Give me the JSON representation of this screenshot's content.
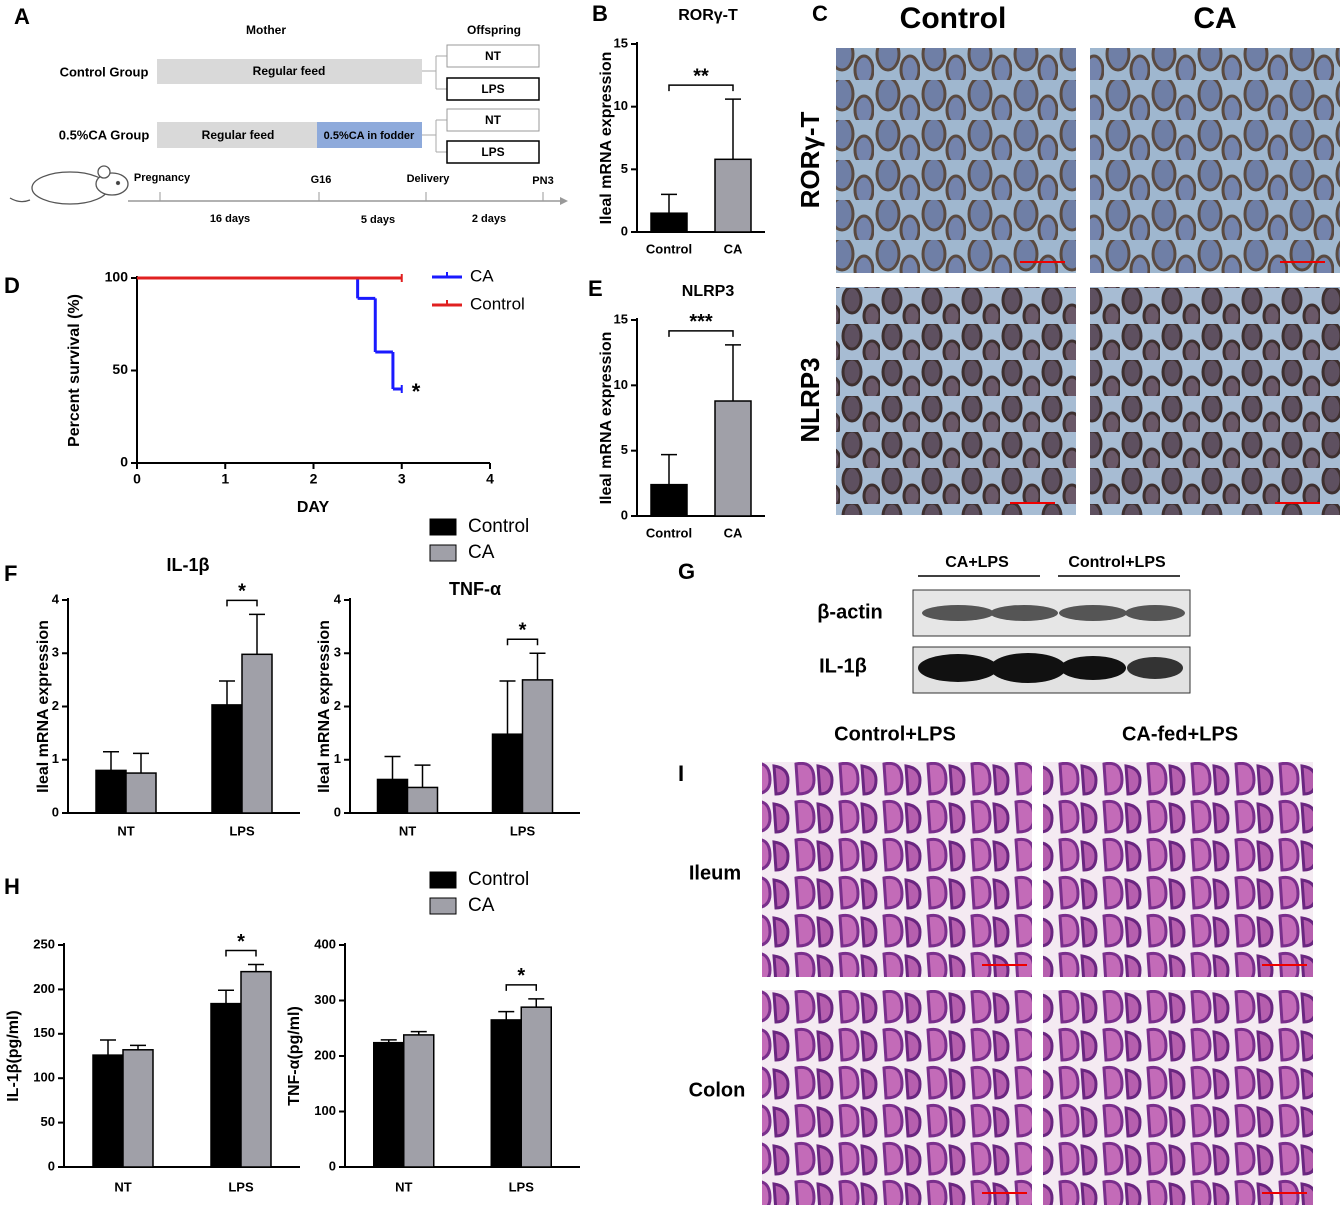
{
  "panel_letters": [
    "A",
    "B",
    "C",
    "D",
    "E",
    "F",
    "G",
    "H",
    "I"
  ],
  "panel_a": {
    "mother": "Mother",
    "offspring": "Offspring",
    "groups": [
      {
        "label": "Control Group",
        "feed": "Regular feed",
        "offspring": [
          "NT",
          "LPS"
        ]
      },
      {
        "label": "0.5%CA Group",
        "feed": "Regular feed",
        "ca_feed": "0.5%CA in fodder",
        "offspring": [
          "NT",
          "LPS"
        ]
      }
    ],
    "timeline": [
      "Pregnancy",
      "G16",
      "Delivery",
      "PN3"
    ],
    "durations": [
      "16 days",
      "5 days",
      "2 days"
    ]
  },
  "panel_c": {
    "columns": [
      "Control",
      "CA"
    ],
    "rows": [
      "RORγ-T",
      "NLRP3"
    ]
  },
  "panel_g": {
    "groups": [
      "CA+LPS",
      "Control+LPS"
    ],
    "rows": [
      "β-actin",
      "IL-1β"
    ]
  },
  "panel_i": {
    "columns": [
      "Control+LPS",
      "CA-fed+LPS"
    ],
    "rows": [
      "Ileum",
      "Colon"
    ]
  },
  "chart_data": [
    {
      "type": "bar",
      "title": "RORγ-T",
      "ylabel": "Ileal mRNA expression",
      "categories": [
        "Control",
        "CA"
      ],
      "values": [
        1.5,
        5.8
      ],
      "errors": [
        1.5,
        4.8
      ],
      "colors": [
        "#000000",
        "#a0a0a8"
      ],
      "ylim": [
        0,
        15
      ],
      "yticks": [
        0,
        5,
        10,
        15
      ],
      "annotation": "**"
    },
    {
      "type": "line",
      "xlabel": "DAY",
      "ylabel": "Percent survival (%)",
      "series": [
        {
          "name": "CA",
          "color": "#1a1aff",
          "x": [
            0,
            2.5,
            2.7,
            2.9,
            3.0
          ],
          "values": [
            100,
            89,
            60,
            40,
            40
          ]
        },
        {
          "name": "Control",
          "color": "#e02020",
          "x": [
            0,
            3.0
          ],
          "values": [
            100,
            100
          ]
        }
      ],
      "xlim": [
        0,
        4
      ],
      "xticks": [
        0,
        1,
        2,
        3,
        4
      ],
      "ylim": [
        0,
        100
      ],
      "yticks": [
        0,
        50,
        100
      ],
      "annotation": "*"
    },
    {
      "type": "bar",
      "title": "NLRP3",
      "ylabel": "Ileal mRNA expression",
      "categories": [
        "Control",
        "CA"
      ],
      "values": [
        2.4,
        8.8
      ],
      "errors": [
        2.3,
        4.3
      ],
      "colors": [
        "#000000",
        "#a0a0a8"
      ],
      "ylim": [
        0,
        15
      ],
      "yticks": [
        0,
        5,
        10,
        15
      ],
      "annotation": "***"
    },
    {
      "type": "bar",
      "title": "IL-1β",
      "ylabel": "Ileal mRNA expression",
      "categories": [
        "NT",
        "LPS"
      ],
      "series": [
        {
          "name": "Control",
          "color": "#000000",
          "values": [
            0.8,
            2.03
          ],
          "errors": [
            0.35,
            0.45
          ]
        },
        {
          "name": "CA",
          "color": "#a0a0a8",
          "values": [
            0.75,
            2.98
          ],
          "errors": [
            0.37,
            0.75
          ]
        }
      ],
      "ylim": [
        0,
        4
      ],
      "yticks": [
        0,
        1,
        2,
        3,
        4
      ],
      "annotation": "*"
    },
    {
      "type": "bar",
      "title": "TNF-α",
      "ylabel": "Ileal mRNA expression",
      "categories": [
        "NT",
        "LPS"
      ],
      "series": [
        {
          "color": "#000000",
          "values": [
            0.63,
            1.48
          ],
          "errors": [
            0.43,
            1.0
          ]
        },
        {
          "color": "#a0a0a8",
          "values": [
            0.48,
            2.5
          ],
          "errors": [
            0.42,
            0.5
          ]
        }
      ],
      "ylim": [
        0,
        4
      ],
      "yticks": [
        0,
        1,
        2,
        3,
        4
      ],
      "annotation": "*"
    },
    {
      "type": "bar",
      "ylabel": "IL-1β(pg/ml)",
      "categories": [
        "NT",
        "LPS"
      ],
      "series": [
        {
          "name": "Control",
          "color": "#000000",
          "values": [
            126,
            184
          ],
          "errors": [
            17,
            15
          ]
        },
        {
          "name": "CA",
          "color": "#a0a0a8",
          "values": [
            132,
            220
          ],
          "errors": [
            5,
            8
          ]
        }
      ],
      "ylim": [
        0,
        250
      ],
      "yticks": [
        0,
        50,
        100,
        150,
        200,
        250
      ],
      "annotation": "*"
    },
    {
      "type": "bar",
      "ylabel": "TNF-α(pg/ml)",
      "categories": [
        "NT",
        "LPS"
      ],
      "series": [
        {
          "color": "#000000",
          "values": [
            224,
            265
          ],
          "errors": [
            5,
            15
          ]
        },
        {
          "color": "#a0a0a8",
          "values": [
            238,
            288
          ],
          "errors": [
            6,
            15
          ]
        }
      ],
      "ylim": [
        0,
        400
      ],
      "yticks": [
        0,
        100,
        200,
        300,
        400
      ],
      "annotation": "*"
    }
  ]
}
